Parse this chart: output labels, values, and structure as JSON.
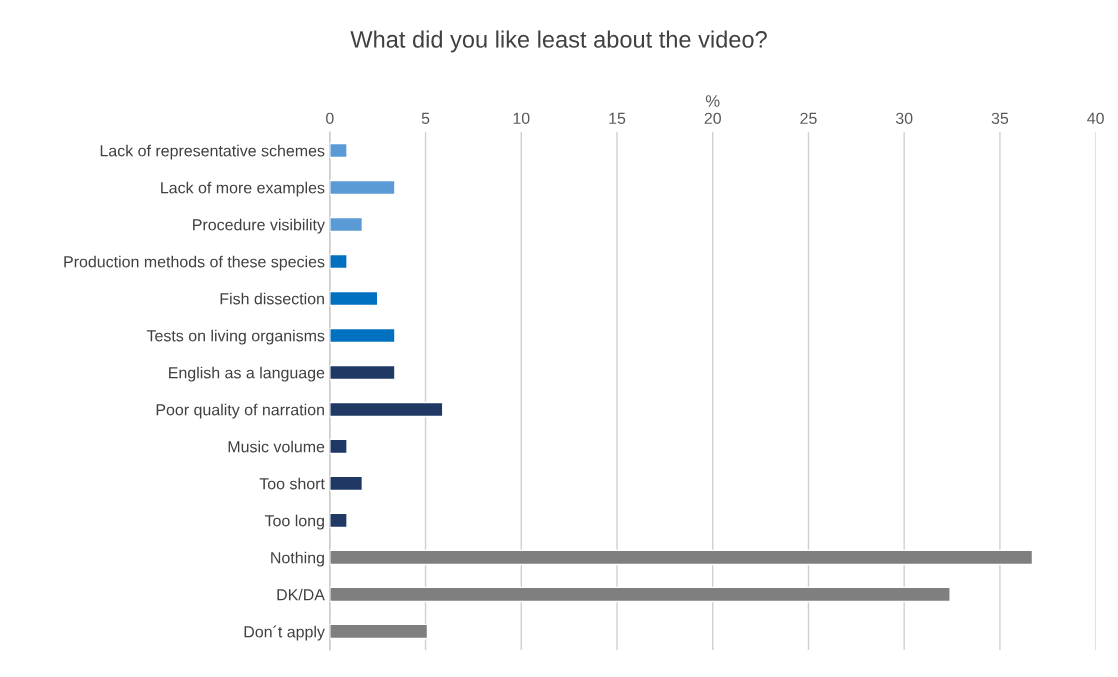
{
  "chart_data": {
    "type": "bar",
    "orientation": "horizontal",
    "title": "What did you like least about the video?",
    "xlabel": "%",
    "categories": [
      "Lack of representative schemes",
      "Lack of more examples",
      "Procedure visibility",
      "Production methods of these species",
      "Fish dissection",
      "Tests on living organisms",
      "English as a language",
      "Poor quality of narration",
      "Music volume",
      "Too short",
      "Too long",
      "Nothing",
      "DK/DA",
      "Don´t apply"
    ],
    "values": [
      0.9,
      3.4,
      1.7,
      0.9,
      2.5,
      3.4,
      3.4,
      5.9,
      0.9,
      1.7,
      0.9,
      36.7,
      32.4,
      5.1
    ],
    "colors": [
      "#5b9bd5",
      "#5b9bd5",
      "#5b9bd5",
      "#0070c0",
      "#0070c0",
      "#0070c0",
      "#203864",
      "#203864",
      "#203864",
      "#203864",
      "#203864",
      "#7f7f7f",
      "#7f7f7f",
      "#7f7f7f"
    ],
    "xlim": [
      0,
      40
    ],
    "xticks": [
      0,
      5,
      10,
      15,
      20,
      25,
      30,
      35,
      40
    ],
    "grid": "x"
  }
}
